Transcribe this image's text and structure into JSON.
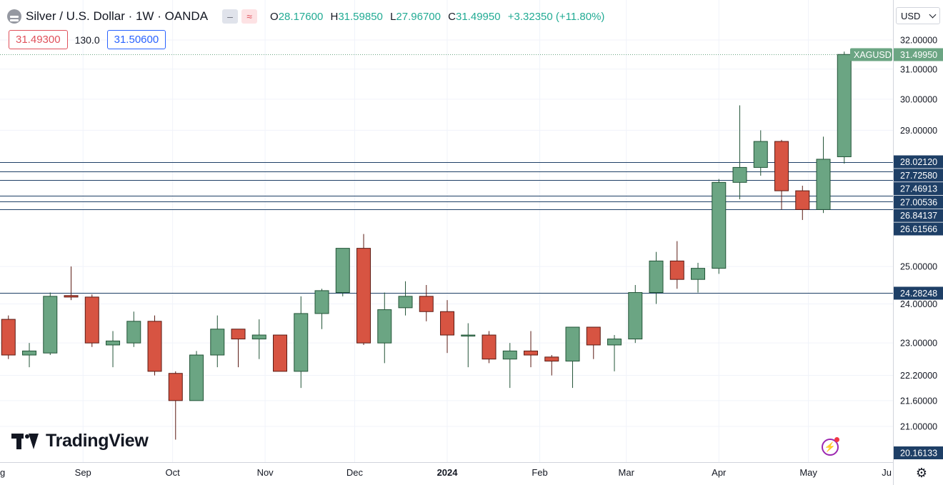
{
  "header": {
    "title": "Silver / U.S. Dollar · 1W · OANDA",
    "ohlc": {
      "o_label": "O",
      "o": "28.17600",
      "h_label": "H",
      "h": "31.59850",
      "l_label": "L",
      "l": "27.96700",
      "c_label": "C",
      "c": "31.49950",
      "change": "+3.32350 (+11.80%)"
    },
    "dash_glyph": "‒",
    "wave_glyph": "≈"
  },
  "quote": {
    "sell": "31.49300",
    "spread": "130.0",
    "buy": "31.50600"
  },
  "currency": "USD",
  "branding": "TradingView",
  "icons": {
    "bolt": "⚡",
    "settings": "⚙"
  },
  "colors": {
    "up": "#6ba583",
    "up_border": "#225437",
    "down": "#d75442",
    "down_border": "#5b1a13",
    "level_line": "#1e3f66",
    "last_price_bg": "#6ba583",
    "level_label_bg": "#1e3f66"
  },
  "chart_data": {
    "type": "candlestick",
    "symbol": "XAGUSD",
    "timeframe": "1W",
    "scale": "log",
    "ylim": [
      19.9,
      32.6
    ],
    "last_price": "31.49950",
    "y_ticks": [
      "32.00000",
      "31.00000",
      "30.00000",
      "29.00000",
      "25.00000",
      "24.00000",
      "23.00000",
      "22.20000",
      "21.60000",
      "21.00000"
    ],
    "x_ticks": [
      "g",
      "Sep",
      "Oct",
      "Nov",
      "Dec",
      "2024",
      "Feb",
      "Mar",
      "Apr",
      "May",
      "Ju"
    ],
    "levels": [
      {
        "label": "28.02120",
        "value": 28.0212
      },
      {
        "label": "27.72580",
        "value": 27.7258
      },
      {
        "label": "27.46913",
        "value": 27.46913
      },
      {
        "label": "27.00536",
        "value": 27.00536
      },
      {
        "label": "26.84137",
        "value": 26.84137
      },
      {
        "label": "26.61566",
        "value": 26.61566
      },
      {
        "label": "24.28248",
        "value": 24.28248
      }
    ],
    "bottom_label": "20.16133",
    "candles": [
      {
        "date": "2023-08-07",
        "o": 23.6,
        "h": 23.7,
        "l": 22.6,
        "c": 22.7
      },
      {
        "date": "2023-08-14",
        "o": 22.7,
        "h": 23.0,
        "l": 22.4,
        "c": 22.8
      },
      {
        "date": "2023-08-21",
        "o": 22.75,
        "h": 24.3,
        "l": 22.7,
        "c": 24.2
      },
      {
        "date": "2023-08-28",
        "o": 24.22,
        "h": 25.0,
        "l": 24.1,
        "c": 24.18
      },
      {
        "date": "2023-09-04",
        "o": 24.18,
        "h": 24.25,
        "l": 22.9,
        "c": 23.0
      },
      {
        "date": "2023-09-11",
        "o": 22.95,
        "h": 23.3,
        "l": 22.4,
        "c": 23.05
      },
      {
        "date": "2023-09-18",
        "o": 23.0,
        "h": 23.8,
        "l": 22.9,
        "c": 23.55
      },
      {
        "date": "2023-09-25",
        "o": 23.55,
        "h": 23.7,
        "l": 22.2,
        "c": 22.3
      },
      {
        "date": "2023-10-02",
        "o": 22.25,
        "h": 22.3,
        "l": 20.7,
        "c": 21.6
      },
      {
        "date": "2023-10-09",
        "o": 21.6,
        "h": 22.8,
        "l": 21.6,
        "c": 22.7
      },
      {
        "date": "2023-10-16",
        "o": 22.7,
        "h": 23.7,
        "l": 22.4,
        "c": 23.35
      },
      {
        "date": "2023-10-23",
        "o": 23.35,
        "h": 23.35,
        "l": 22.4,
        "c": 23.1
      },
      {
        "date": "2023-10-30",
        "o": 23.1,
        "h": 23.6,
        "l": 22.6,
        "c": 23.2
      },
      {
        "date": "2023-11-06",
        "o": 23.2,
        "h": 23.2,
        "l": 22.3,
        "c": 22.3
      },
      {
        "date": "2023-11-13",
        "o": 22.3,
        "h": 24.2,
        "l": 21.9,
        "c": 23.75
      },
      {
        "date": "2023-11-20",
        "o": 23.75,
        "h": 24.4,
        "l": 23.35,
        "c": 24.35
      },
      {
        "date": "2023-11-27",
        "o": 24.3,
        "h": 25.5,
        "l": 24.2,
        "c": 25.5
      },
      {
        "date": "2023-12-04",
        "o": 25.5,
        "h": 25.9,
        "l": 22.95,
        "c": 23.0
      },
      {
        "date": "2023-12-11",
        "o": 23.0,
        "h": 24.3,
        "l": 22.5,
        "c": 23.85
      },
      {
        "date": "2023-12-18",
        "o": 23.9,
        "h": 24.6,
        "l": 23.7,
        "c": 24.2
      },
      {
        "date": "2023-12-25",
        "o": 24.2,
        "h": 24.5,
        "l": 23.55,
        "c": 23.8
      },
      {
        "date": "2024-01-01",
        "o": 23.8,
        "h": 24.1,
        "l": 22.75,
        "c": 23.2
      },
      {
        "date": "2024-01-08",
        "o": 23.2,
        "h": 23.5,
        "l": 22.4,
        "c": 23.2
      },
      {
        "date": "2024-01-15",
        "o": 23.2,
        "h": 23.3,
        "l": 22.5,
        "c": 22.6
      },
      {
        "date": "2024-01-22",
        "o": 22.6,
        "h": 23.0,
        "l": 21.9,
        "c": 22.8
      },
      {
        "date": "2024-01-29",
        "o": 22.8,
        "h": 23.3,
        "l": 22.4,
        "c": 22.7
      },
      {
        "date": "2024-02-05",
        "o": 22.65,
        "h": 22.7,
        "l": 22.2,
        "c": 22.55
      },
      {
        "date": "2024-02-12",
        "o": 22.55,
        "h": 23.4,
        "l": 21.9,
        "c": 23.4
      },
      {
        "date": "2024-02-19",
        "o": 23.4,
        "h": 23.4,
        "l": 22.6,
        "c": 22.95
      },
      {
        "date": "2024-02-26",
        "o": 22.95,
        "h": 23.2,
        "l": 22.3,
        "c": 23.1
      },
      {
        "date": "2024-03-04",
        "o": 23.1,
        "h": 24.5,
        "l": 23.0,
        "c": 24.3
      },
      {
        "date": "2024-03-11",
        "o": 24.3,
        "h": 25.4,
        "l": 24.0,
        "c": 25.15
      },
      {
        "date": "2024-03-18",
        "o": 25.15,
        "h": 25.7,
        "l": 24.4,
        "c": 24.65
      },
      {
        "date": "2024-03-25",
        "o": 24.65,
        "h": 25.1,
        "l": 24.3,
        "c": 24.95
      },
      {
        "date": "2024-04-01",
        "o": 24.95,
        "h": 27.5,
        "l": 24.8,
        "c": 27.4
      },
      {
        "date": "2024-04-08",
        "o": 27.4,
        "h": 29.8,
        "l": 26.9,
        "c": 27.85
      },
      {
        "date": "2024-04-15",
        "o": 27.85,
        "h": 29.0,
        "l": 27.6,
        "c": 28.65
      },
      {
        "date": "2024-04-22",
        "o": 28.65,
        "h": 28.7,
        "l": 26.6,
        "c": 27.15
      },
      {
        "date": "2024-04-29",
        "o": 27.15,
        "h": 27.3,
        "l": 26.3,
        "c": 26.6
      },
      {
        "date": "2024-05-06",
        "o": 26.6,
        "h": 28.8,
        "l": 26.5,
        "c": 28.1
      },
      {
        "date": "2024-05-13",
        "o": 28.176,
        "h": 31.5985,
        "l": 27.967,
        "c": 31.4995
      }
    ]
  }
}
